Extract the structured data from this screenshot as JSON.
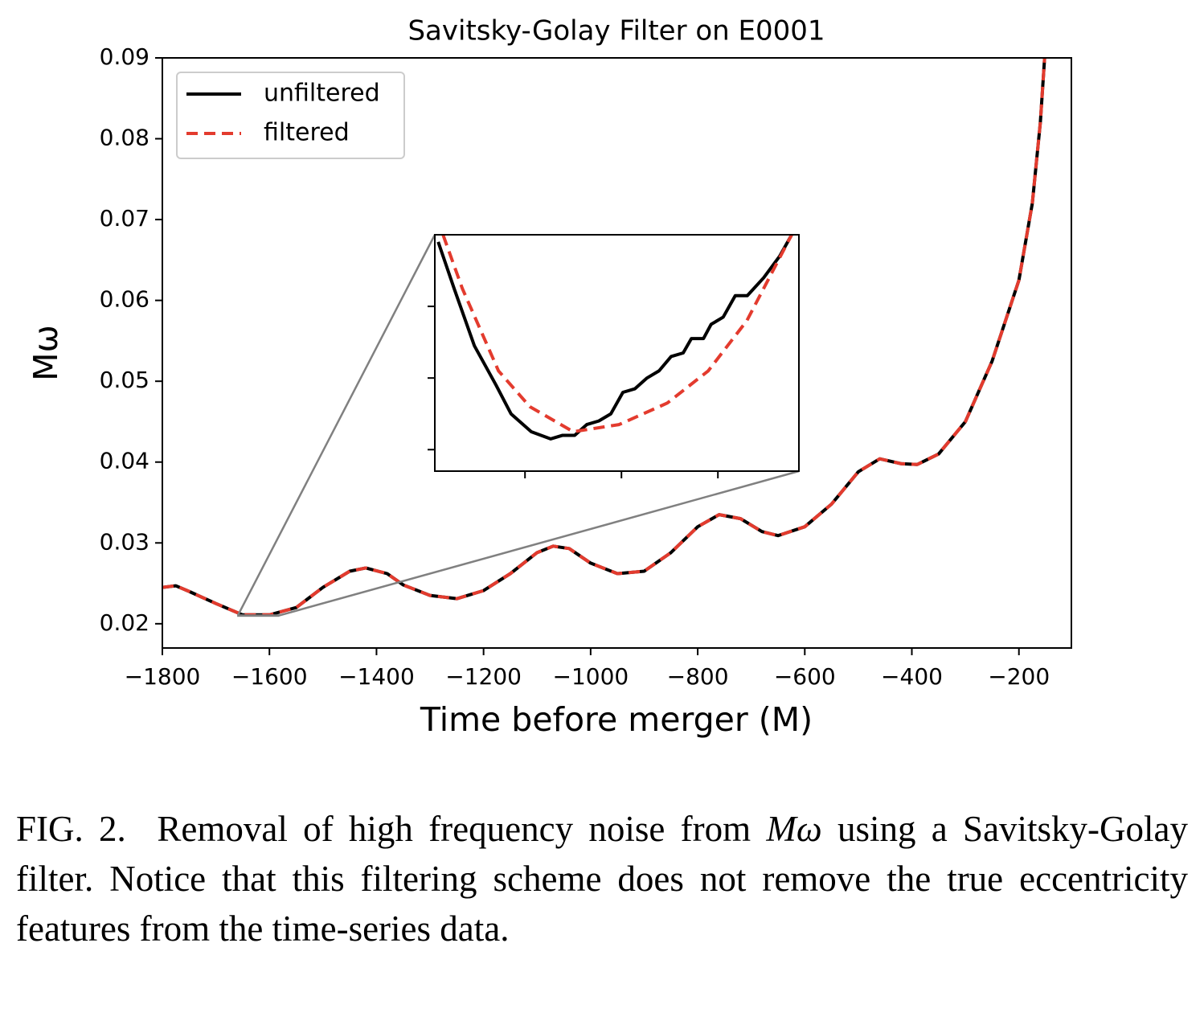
{
  "chart_data": [
    {
      "type": "line",
      "title": "Savitsky-Golay Filter on E0001",
      "xlabel": "Time before merger (M)",
      "ylabel": "Mω",
      "x": [
        -1800,
        -1775,
        -1750,
        -1700,
        -1650,
        -1600,
        -1550,
        -1500,
        -1450,
        -1420,
        -1380,
        -1350,
        -1300,
        -1250,
        -1200,
        -1150,
        -1100,
        -1070,
        -1040,
        -1000,
        -950,
        -900,
        -850,
        -800,
        -760,
        -720,
        -680,
        -650,
        -600,
        -550,
        -500,
        -460,
        -420,
        -390,
        -350,
        -300,
        -250,
        -200,
        -175,
        -160,
        -152
      ],
      "series": [
        {
          "name": "unfiltered",
          "color": "#000000",
          "dash": false,
          "values": [
            0.0245,
            0.0247,
            0.024,
            0.0225,
            0.0211,
            0.0211,
            0.022,
            0.0245,
            0.0265,
            0.0269,
            0.0262,
            0.0248,
            0.0235,
            0.0231,
            0.0241,
            0.0262,
            0.0288,
            0.0296,
            0.0293,
            0.0275,
            0.0262,
            0.0265,
            0.0288,
            0.032,
            0.0335,
            0.033,
            0.0314,
            0.0309,
            0.032,
            0.0348,
            0.0388,
            0.0404,
            0.0398,
            0.0397,
            0.041,
            0.045,
            0.0525,
            0.0625,
            0.072,
            0.082,
            0.09
          ]
        },
        {
          "name": "filtered",
          "color": "#e33b2e",
          "dash": true,
          "values": [
            0.0245,
            0.0247,
            0.024,
            0.0225,
            0.0211,
            0.0211,
            0.022,
            0.0245,
            0.0265,
            0.0269,
            0.0262,
            0.0248,
            0.0235,
            0.0231,
            0.0241,
            0.0262,
            0.0288,
            0.0296,
            0.0293,
            0.0275,
            0.0262,
            0.0265,
            0.0288,
            0.032,
            0.0335,
            0.033,
            0.0314,
            0.0309,
            0.032,
            0.0348,
            0.0388,
            0.0404,
            0.0398,
            0.0397,
            0.041,
            0.045,
            0.0525,
            0.0625,
            0.072,
            0.082,
            0.09
          ]
        }
      ],
      "xlim": [
        -1800,
        -102
      ],
      "ylim": [
        0.017,
        0.09
      ],
      "xticks": [
        {
          "value": -1800,
          "label": "−1800"
        },
        {
          "value": -1600,
          "label": "−1600"
        },
        {
          "value": -1400,
          "label": "−1400"
        },
        {
          "value": -1200,
          "label": "−1200"
        },
        {
          "value": -1000,
          "label": "−1000"
        },
        {
          "value": -800,
          "label": "−800"
        },
        {
          "value": -600,
          "label": "−600"
        },
        {
          "value": -400,
          "label": "−400"
        },
        {
          "value": -200,
          "label": "−200"
        }
      ],
      "yticks": [
        0.02,
        0.03,
        0.04,
        0.05,
        0.06,
        0.07,
        0.08,
        0.09
      ],
      "legend": "upper left"
    },
    {
      "type": "line",
      "series": [
        {
          "name": "unfiltered",
          "color": "#000000",
          "dash": false,
          "x": [
            -1658.0,
            -1654.7,
            -1650.5,
            -1646.0,
            -1642.9,
            -1638.7,
            -1634.7,
            -1632.2,
            -1629.7,
            -1627.2,
            -1624.7,
            -1622.2,
            -1619.7,
            -1617.2,
            -1614.7,
            -1612.2,
            -1609.7,
            -1607.2,
            -1605.5,
            -1603.0,
            -1601.4,
            -1598.9,
            -1596.4,
            -1593.9,
            -1590.5,
            -1587.2,
            -1584.7
          ],
          "values": [
            0.021058,
            0.021045,
            0.021029,
            0.021018,
            0.02101,
            0.021005,
            0.021003,
            0.021004,
            0.021004,
            0.021007,
            0.021008,
            0.02101,
            0.021016,
            0.021017,
            0.02102,
            0.021022,
            0.021026,
            0.021027,
            0.021031,
            0.021031,
            0.021035,
            0.021037,
            0.021043,
            0.021043,
            0.021048,
            0.021054,
            0.02106
          ]
        },
        {
          "name": "filtered",
          "color": "#e33b2e",
          "dash": true,
          "x": [
            -1657.0,
            -1653.0,
            -1645.5,
            -1639.0,
            -1630.0,
            -1620.5,
            -1610.5,
            -1602.0,
            -1594.0,
            -1584.7
          ],
          "values": [
            0.02106,
            0.021045,
            0.021022,
            0.021012,
            0.021005,
            0.021007,
            0.021013,
            0.021022,
            0.021036,
            0.02106
          ]
        }
      ],
      "xlim": [
        -1658.7,
        -1583.2
      ],
      "ylim": [
        0.020994,
        0.02106
      ],
      "xticks": [
        -1640,
        -1620,
        -1600
      ],
      "yticks": [
        0.021,
        0.02102,
        0.02104
      ]
    }
  ],
  "caption": {
    "label": "FIG. 2.",
    "text_before": "Removal of high frequency noise from",
    "math": "Mω",
    "text_after": "using a Savitsky-Golay filter. Notice that this filtering scheme does not remove the true eccentricity features from the time-series data."
  }
}
